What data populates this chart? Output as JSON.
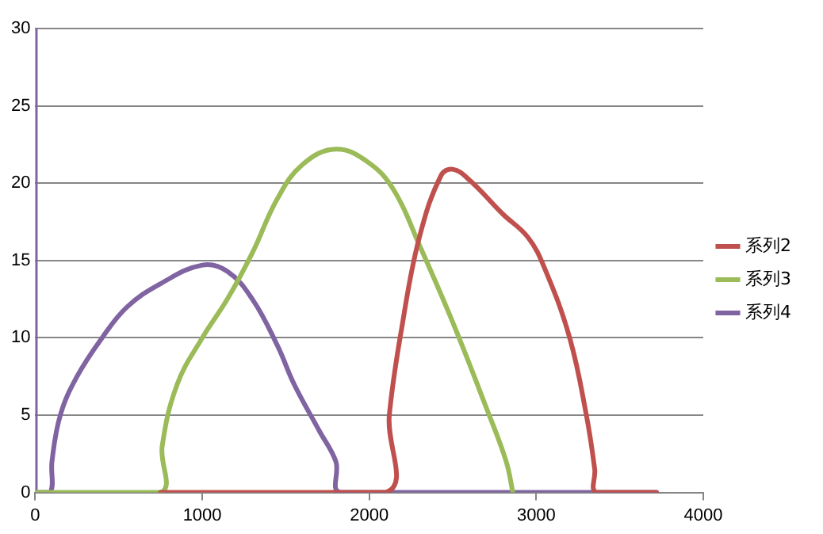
{
  "chart_data": {
    "type": "line",
    "xlim": [
      0,
      4000
    ],
    "xticks": [
      0,
      1000,
      2000,
      3000,
      4000
    ],
    "ylim": [
      0,
      30
    ],
    "yticks": [
      0,
      5,
      10,
      15,
      20,
      25,
      30
    ],
    "grid": "y",
    "legend": "right",
    "marker": "none",
    "line_style": "solid",
    "series": [
      {
        "name": "系列2",
        "color": "#c0504d",
        "x": [
          750,
          2100,
          2120,
          2200,
          2300,
          2430,
          2500,
          2600,
          2800,
          2950,
          3050,
          3200,
          3300,
          3350,
          3360,
          3720
        ],
        "values": [
          0,
          0,
          5,
          11,
          16.5,
          20.5,
          20.9,
          20.2,
          18,
          16.5,
          14.5,
          10,
          5,
          1.5,
          0,
          0
        ]
      },
      {
        "name": "系列3",
        "color": "#9bbb59",
        "x": [
          0,
          750,
          760,
          850,
          1000,
          1150,
          1300,
          1450,
          1600,
          1800,
          2000,
          2150,
          2300,
          2500,
          2700,
          2820,
          2860
        ],
        "values": [
          0,
          0,
          3,
          7,
          10,
          12.5,
          15.5,
          19,
          21.2,
          22.2,
          21.3,
          19.5,
          16,
          11,
          5.5,
          2,
          0
        ]
      },
      {
        "name": "系列4",
        "color": "#8064a2",
        "x": [
          0,
          0,
          90,
          100,
          150,
          250,
          400,
          550,
          750,
          1000,
          1150,
          1300,
          1450,
          1550,
          1700,
          1800,
          1830,
          3720
        ],
        "values": [
          30,
          0,
          0,
          2,
          5,
          7.5,
          10,
          12,
          13.5,
          14.7,
          14.3,
          12.5,
          9.5,
          7,
          4,
          2,
          0,
          0
        ]
      }
    ]
  }
}
